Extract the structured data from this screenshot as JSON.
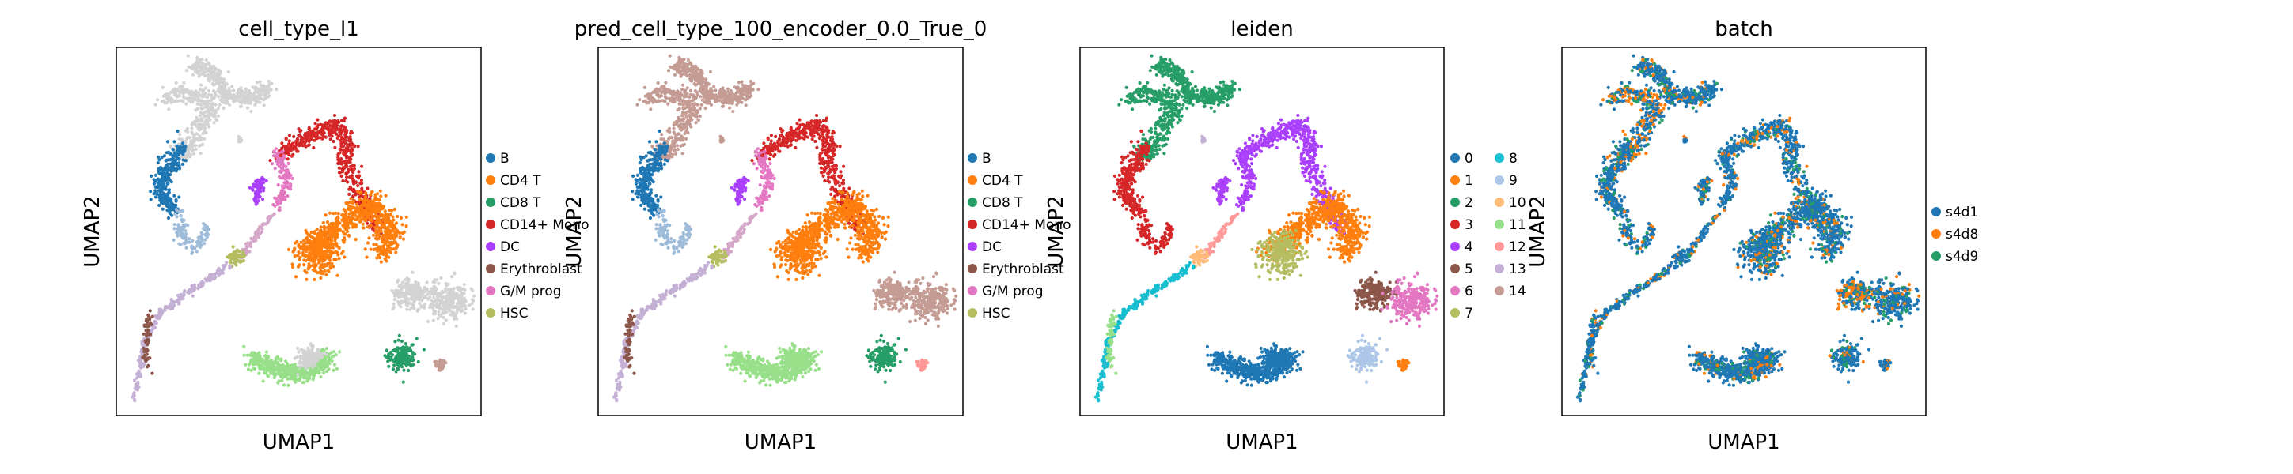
{
  "chart_data": [
    {
      "type": "scatter",
      "title": "cell_type_l1",
      "xlabel": "UMAP1",
      "ylabel": "UMAP2",
      "legend_placement": "right",
      "legend": [
        {
          "label": "B",
          "color": "#1f77b4"
        },
        {
          "label": "CD4 T",
          "color": "#ff7f0e"
        },
        {
          "label": "CD8 T",
          "color": "#279e68"
        },
        {
          "label": "CD14+ Mono",
          "color": "#d62728"
        },
        {
          "label": "DC",
          "color": "#aa40fc"
        },
        {
          "label": "Erythroblast",
          "color": "#8c564b"
        },
        {
          "label": "G/M prog",
          "color": "#e377c2"
        },
        {
          "label": "HSC",
          "color": "#b5bd61"
        }
      ]
    },
    {
      "type": "scatter",
      "title": "pred_cell_type_100_encoder_0.0_True_0",
      "xlabel": "UMAP1",
      "ylabel": "UMAP2",
      "legend_placement": "right",
      "legend": [
        {
          "label": "B",
          "color": "#1f77b4"
        },
        {
          "label": "CD4 T",
          "color": "#ff7f0e"
        },
        {
          "label": "CD8 T",
          "color": "#279e68"
        },
        {
          "label": "CD14+ Mono",
          "color": "#d62728"
        },
        {
          "label": "DC",
          "color": "#aa40fc"
        },
        {
          "label": "Erythroblast",
          "color": "#8c564b"
        },
        {
          "label": "G/M prog",
          "color": "#e377c2"
        },
        {
          "label": "HSC",
          "color": "#b5bd61"
        }
      ]
    },
    {
      "type": "scatter",
      "title": "leiden",
      "xlabel": "UMAP1",
      "ylabel": "UMAP2",
      "legend_placement": "right",
      "legend": [
        {
          "label": "0",
          "color": "#1f77b4"
        },
        {
          "label": "1",
          "color": "#ff7f0e"
        },
        {
          "label": "2",
          "color": "#279e68"
        },
        {
          "label": "3",
          "color": "#d62728"
        },
        {
          "label": "4",
          "color": "#aa40fc"
        },
        {
          "label": "5",
          "color": "#8c564b"
        },
        {
          "label": "6",
          "color": "#e377c2"
        },
        {
          "label": "7",
          "color": "#b5bd61"
        },
        {
          "label": "8",
          "color": "#17becf"
        },
        {
          "label": "9",
          "color": "#aec7e8"
        },
        {
          "label": "10",
          "color": "#ffbb78"
        },
        {
          "label": "11",
          "color": "#98df8a"
        },
        {
          "label": "12",
          "color": "#ff9896"
        },
        {
          "label": "13",
          "color": "#c5b0d5"
        },
        {
          "label": "14",
          "color": "#c49c94"
        }
      ]
    },
    {
      "type": "scatter",
      "title": "batch",
      "xlabel": "UMAP1",
      "ylabel": "UMAP2",
      "legend_placement": "right",
      "legend": [
        {
          "label": "s4d1",
          "color": "#1f77b4"
        },
        {
          "label": "s4d8",
          "color": "#ff7f0e"
        },
        {
          "label": "s4d9",
          "color": "#279e68"
        }
      ]
    }
  ],
  "colors": {
    "unassigned": "#d3d3d3",
    "axes": "#000000"
  }
}
